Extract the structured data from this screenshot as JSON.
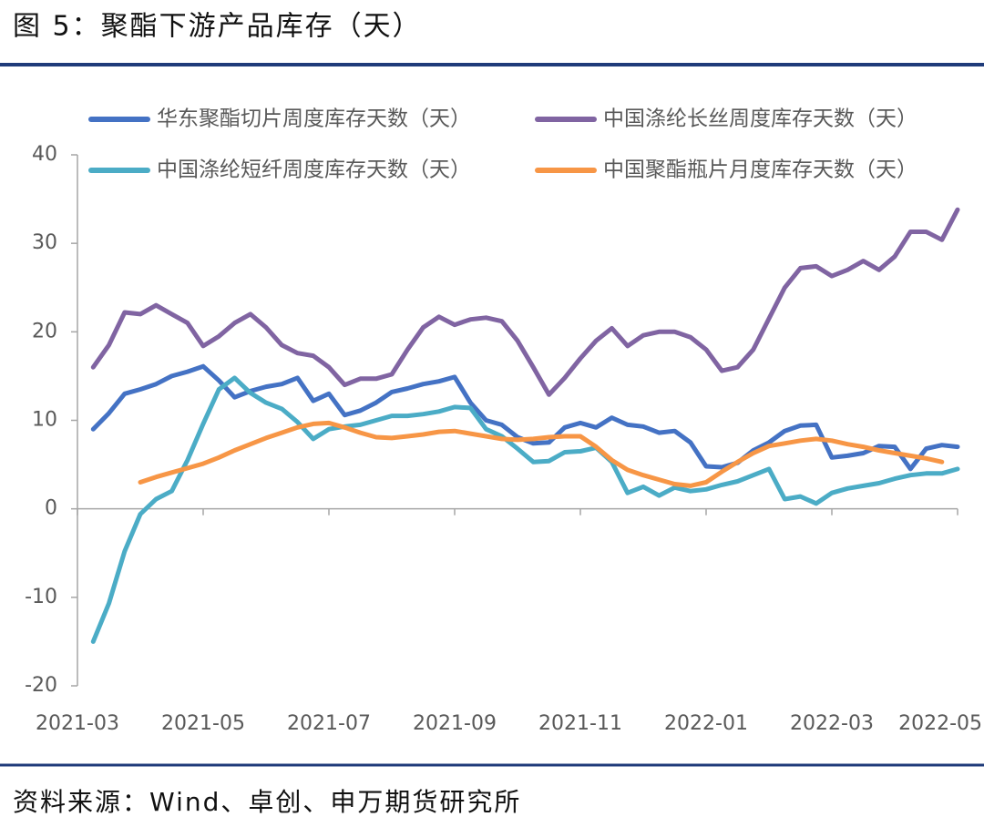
{
  "chart_data": {
    "type": "line",
    "title": "图 5：聚酯下游产品库存（天）",
    "source": "资料来源：Wind、卓创、申万期货研究所",
    "categories": [
      "2021-03",
      null,
      null,
      null,
      null,
      null,
      null,
      null,
      "2021-05",
      null,
      null,
      null,
      null,
      null,
      null,
      null,
      "2021-07",
      null,
      null,
      null,
      null,
      null,
      null,
      null,
      "2021-09",
      null,
      null,
      null,
      null,
      null,
      null,
      null,
      "2021-11",
      null,
      null,
      null,
      null,
      null,
      null,
      null,
      "2022-01",
      null,
      null,
      null,
      null,
      null,
      null,
      null,
      "2022-03",
      null,
      null,
      null,
      null,
      null,
      null,
      null,
      "2022-05"
    ],
    "ylim": [
      -20,
      40
    ],
    "yticks": [
      -20,
      -10,
      0,
      10,
      20,
      30,
      40
    ],
    "series": [
      {
        "name": "华东聚酯切片周度库存天数（天）",
        "color": "#4472c4",
        "values": [
          null,
          9,
          10.8,
          13,
          13.5,
          14.1,
          15,
          15.5,
          16.1,
          14.5,
          12.6,
          13.3,
          13.8,
          14.1,
          14.8,
          12.2,
          13,
          10.6,
          11.1,
          12,
          13.2,
          13.6,
          14.1,
          14.4,
          14.9,
          12,
          10,
          9.5,
          8.1,
          7.4,
          7.5,
          9.2,
          9.7,
          9.2,
          10.3,
          9.5,
          9.3,
          8.6,
          8.8,
          7.5,
          4.8,
          4.7,
          5.2,
          6.6,
          7.5,
          8.8,
          9.4,
          9.5,
          5.8,
          6,
          6.3,
          7.1,
          7,
          4.5,
          6.8,
          7.2,
          7
        ]
      },
      {
        "name": "中国涤纶长丝周度库存天数（天）",
        "color": "#8064a2",
        "values": [
          null,
          16,
          18.5,
          22.2,
          22,
          23,
          22,
          21,
          18.4,
          19.5,
          21,
          22,
          20.5,
          18.5,
          17.6,
          17.3,
          16,
          14,
          14.7,
          14.7,
          15.2,
          18,
          20.5,
          21.7,
          20.8,
          21.4,
          21.6,
          21.2,
          19,
          16,
          12.9,
          14.8,
          17,
          19,
          20.4,
          18.4,
          19.6,
          20,
          20,
          19.4,
          18,
          15.6,
          16,
          18,
          21.5,
          25,
          27.2,
          27.4,
          26.3,
          27,
          28,
          27,
          28.5,
          31.3,
          31.3,
          30.4,
          33.8
        ]
      },
      {
        "name": "中国涤纶短纤周度库存天数（天）",
        "color": "#4bacc6",
        "values": [
          null,
          -15,
          -10.7,
          -4.8,
          -0.6,
          1.1,
          2,
          5.5,
          9.6,
          13.5,
          14.8,
          13.1,
          12,
          11.3,
          9.8,
          7.9,
          9,
          9.3,
          9.5,
          10,
          10.5,
          10.5,
          10.7,
          11,
          11.5,
          11.4,
          9,
          8.2,
          6.8,
          5.3,
          5.4,
          6.4,
          6.5,
          6.9,
          5.3,
          1.8,
          2.5,
          1.5,
          2.4,
          2,
          2.2,
          2.7,
          3.1,
          3.8,
          4.5,
          1.1,
          1.4,
          0.6,
          1.8,
          2.3,
          2.6,
          2.9,
          3.4,
          3.8,
          4,
          4,
          4.5
        ]
      },
      {
        "name": "中国聚酯瓶片月度库存天数（天）",
        "color": "#f79646",
        "values": [
          null,
          null,
          null,
          null,
          3,
          3.6,
          4.1,
          4.6,
          5.1,
          5.8,
          6.6,
          7.3,
          8,
          8.6,
          9.2,
          9.6,
          9.7,
          9.2,
          8.6,
          8.1,
          8,
          8.2,
          8.4,
          8.7,
          8.8,
          8.5,
          8.2,
          7.9,
          7.8,
          7.9,
          8.1,
          8.2,
          8.2,
          7,
          5.5,
          4.4,
          3.8,
          3.3,
          2.8,
          2.6,
          3,
          4.2,
          5.3,
          6.3,
          7.1,
          7.4,
          7.7,
          7.9,
          7.7,
          7.3,
          7,
          6.6,
          6.3,
          6,
          5.7,
          5.3,
          null
        ]
      }
    ]
  }
}
